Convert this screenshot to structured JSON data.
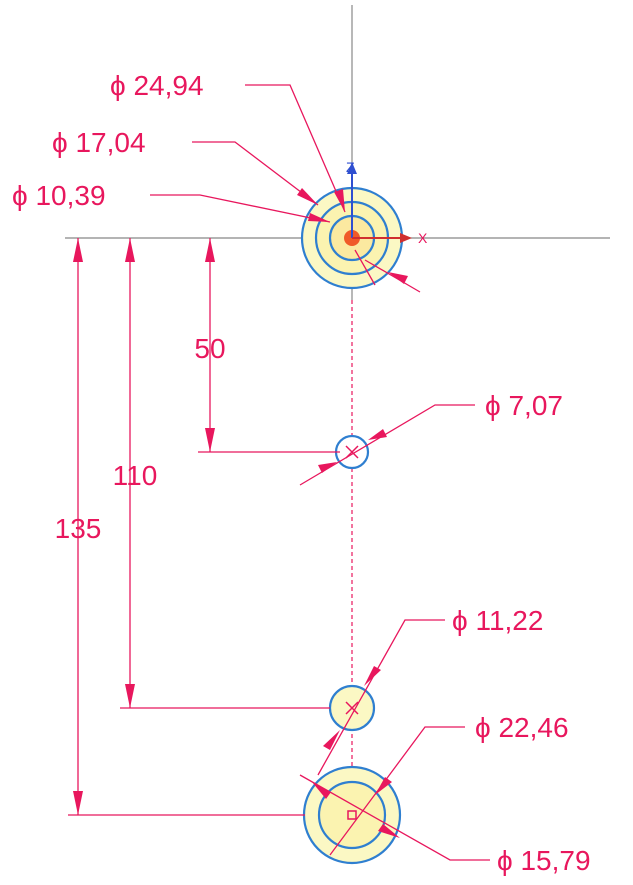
{
  "axes": {
    "z": "Z",
    "x": "X"
  },
  "diameters": [
    {
      "label": "ϕ 24,94"
    },
    {
      "label": "ϕ 17,04"
    },
    {
      "label": "ϕ 10,39"
    },
    {
      "label": "ϕ 7,07"
    },
    {
      "label": "ϕ 11,22"
    },
    {
      "label": "ϕ 22,46"
    },
    {
      "label": "ϕ 15,79"
    }
  ],
  "linear_dimensions": [
    {
      "label": "50"
    },
    {
      "label": "110"
    },
    {
      "label": "135"
    }
  ]
}
